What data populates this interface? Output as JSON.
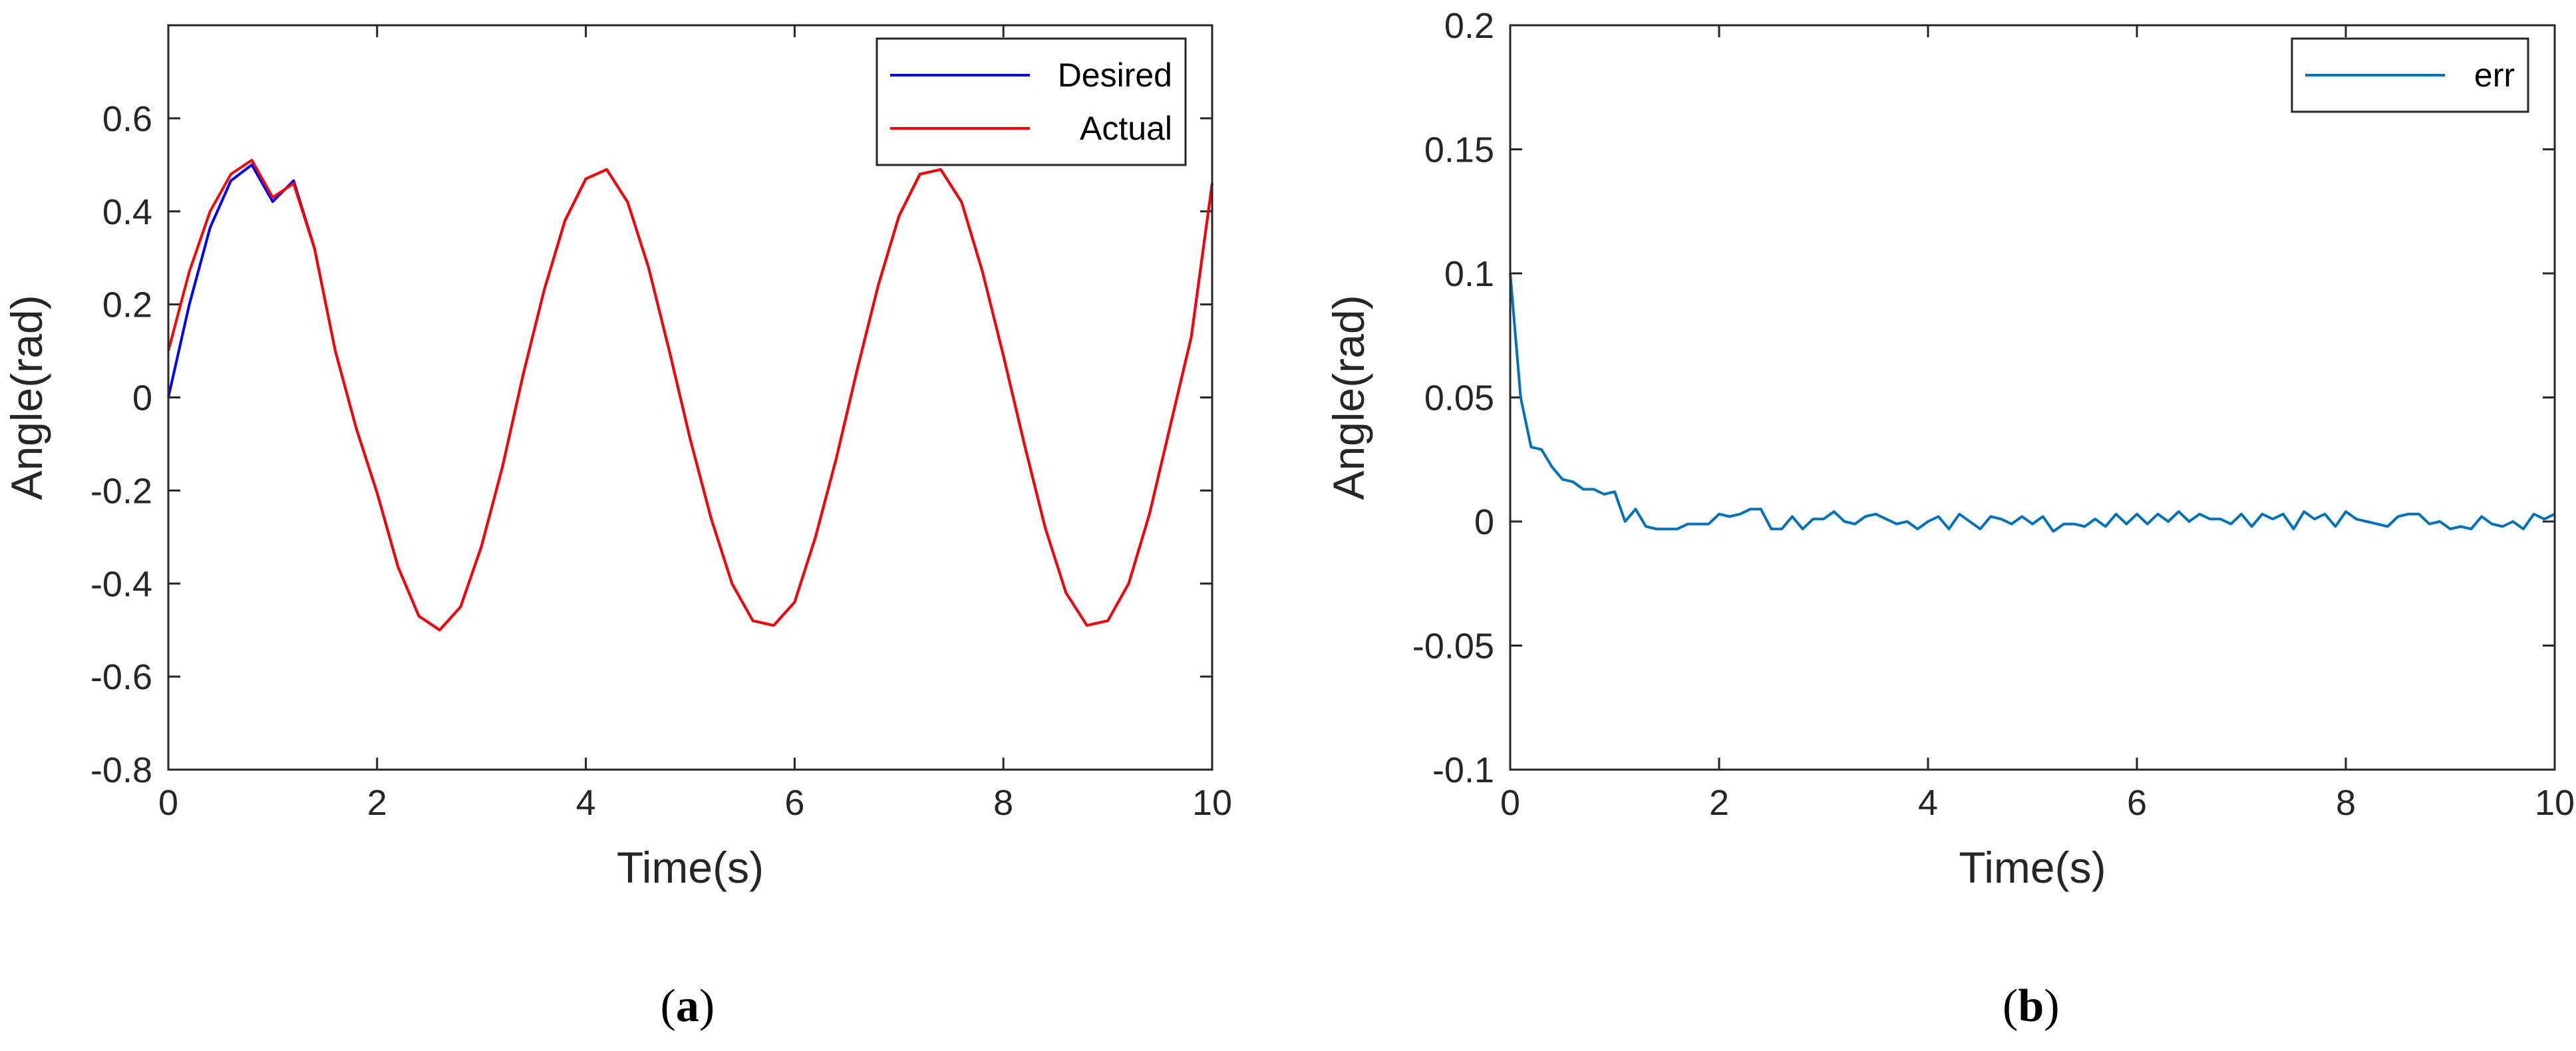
{
  "chart_data": [
    {
      "type": "line",
      "panel_label": "a",
      "xlabel": "Time(s)",
      "ylabel": "Angle(rad)",
      "xlim": [
        0,
        10
      ],
      "ylim": [
        -0.8,
        0.8
      ],
      "xticks": [
        0,
        2,
        4,
        6,
        8,
        10
      ],
      "xtick_labels": [
        "0",
        "2",
        "4",
        "6",
        "8",
        "10"
      ],
      "yticks": [
        -0.8,
        -0.6,
        -0.4,
        -0.2,
        0,
        0.2,
        0.4,
        0.6
      ],
      "ytick_labels": [
        "-0.8",
        "-0.6",
        "-0.4",
        "-0.2",
        "0",
        "0.2",
        "0.4",
        "0.6"
      ],
      "legend_position": "top-right",
      "series": [
        {
          "name": "Desired",
          "color": "#0000ff",
          "x": [
            0,
            0.2,
            0.4,
            0.6,
            0.8,
            1.0,
            1.2,
            1.4,
            1.6,
            1.8,
            2.0,
            2.2,
            2.4,
            2.6,
            2.8,
            3.0,
            3.2,
            3.4,
            3.6,
            3.8,
            4.0,
            4.2,
            4.4,
            4.6,
            4.8,
            5.0,
            5.2,
            5.4,
            5.6,
            5.8,
            6.0,
            6.2,
            6.4,
            6.6,
            6.8,
            7.0,
            7.2,
            7.4,
            7.6,
            7.8,
            8.0,
            8.2,
            8.4,
            8.6,
            8.8,
            9.0,
            9.2,
            9.4,
            9.6,
            9.8,
            10.0
          ],
          "values": [
            0,
            0.199,
            0.365,
            0.466,
            0.5,
            0.421,
            0.466,
            0.321,
            0.1,
            -0.066,
            -0.205,
            -0.364,
            -0.47,
            -0.5,
            -0.45,
            -0.32,
            -0.15,
            0.05,
            0.23,
            0.38,
            0.47,
            0.49,
            0.42,
            0.28,
            0.1,
            -0.09,
            -0.26,
            -0.4,
            -0.48,
            -0.49,
            -0.44,
            -0.3,
            -0.13,
            0.06,
            0.24,
            0.39,
            0.48,
            0.49,
            0.42,
            0.27,
            0.09,
            -0.1,
            -0.28,
            -0.42,
            -0.49,
            -0.48,
            -0.4,
            -0.25,
            -0.06,
            0.13,
            0.46
          ]
        },
        {
          "name": "Actual",
          "color": "#ff0000",
          "x": [
            0,
            0.2,
            0.4,
            0.6,
            0.8,
            1.0,
            1.2,
            1.4,
            1.6,
            1.8,
            2.0,
            2.2,
            2.4,
            2.6,
            2.8,
            3.0,
            3.2,
            3.4,
            3.6,
            3.8,
            4.0,
            4.2,
            4.4,
            4.6,
            4.8,
            5.0,
            5.2,
            5.4,
            5.6,
            5.8,
            6.0,
            6.2,
            6.4,
            6.6,
            6.8,
            7.0,
            7.2,
            7.4,
            7.6,
            7.8,
            8.0,
            8.2,
            8.4,
            8.6,
            8.8,
            9.0,
            9.2,
            9.4,
            9.6,
            9.8,
            10.0
          ],
          "values": [
            0.1,
            0.27,
            0.4,
            0.48,
            0.51,
            0.43,
            0.46,
            0.32,
            0.1,
            -0.066,
            -0.205,
            -0.364,
            -0.47,
            -0.5,
            -0.45,
            -0.32,
            -0.15,
            0.05,
            0.23,
            0.38,
            0.47,
            0.49,
            0.42,
            0.28,
            0.1,
            -0.09,
            -0.26,
            -0.4,
            -0.48,
            -0.49,
            -0.44,
            -0.3,
            -0.13,
            0.06,
            0.24,
            0.39,
            0.48,
            0.49,
            0.42,
            0.27,
            0.09,
            -0.1,
            -0.28,
            -0.42,
            -0.49,
            -0.48,
            -0.4,
            -0.25,
            -0.06,
            0.13,
            0.46
          ]
        }
      ]
    },
    {
      "type": "line",
      "panel_label": "b",
      "xlabel": "Time(s)",
      "ylabel": "Angle(rad)",
      "xlim": [
        0,
        10
      ],
      "ylim": [
        -0.1,
        0.2
      ],
      "xticks": [
        0,
        2,
        4,
        6,
        8,
        10
      ],
      "xtick_labels": [
        "0",
        "2",
        "4",
        "6",
        "8",
        "10"
      ],
      "yticks": [
        -0.1,
        -0.05,
        0,
        0.05,
        0.1,
        0.15,
        0.2
      ],
      "ytick_labels": [
        "-0.1",
        "-0.05",
        "0",
        "0.05",
        "0.1",
        "0.15",
        "0.2"
      ],
      "legend_position": "top-right",
      "series": [
        {
          "name": "err",
          "color": "#0072bd",
          "x": [
            0,
            0.1,
            0.2,
            0.3,
            0.4,
            0.5,
            0.6,
            0.7,
            0.8,
            0.9,
            1.0,
            1.1,
            1.2,
            1.3,
            1.4,
            1.5,
            1.6,
            1.7,
            1.8,
            1.9,
            2.0,
            2.1,
            2.2,
            2.3,
            2.4,
            2.5,
            2.6,
            2.7,
            2.8,
            2.9,
            3.0,
            3.1,
            3.2,
            3.3,
            3.4,
            3.5,
            3.6,
            3.7,
            3.8,
            3.9,
            4.0,
            4.1,
            4.2,
            4.3,
            4.4,
            4.5,
            4.6,
            4.7,
            4.8,
            4.9,
            5.0,
            5.1,
            5.2,
            5.3,
            5.4,
            5.5,
            5.6,
            5.7,
            5.8,
            5.9,
            6.0,
            6.1,
            6.2,
            6.3,
            6.4,
            6.5,
            6.6,
            6.7,
            6.8,
            6.9,
            7.0,
            7.1,
            7.2,
            7.3,
            7.4,
            7.5,
            7.6,
            7.7,
            7.8,
            7.9,
            8.0,
            8.1,
            8.2,
            8.3,
            8.4,
            8.5,
            8.6,
            8.7,
            8.8,
            8.9,
            9.0,
            9.1,
            9.2,
            9.3,
            9.4,
            9.5,
            9.6,
            9.7,
            9.8,
            9.9,
            10.0
          ],
          "values": [
            0.1,
            0.05,
            0.03,
            0.029,
            0.022,
            0.017,
            0.016,
            0.013,
            0.013,
            0.011,
            0.012,
            0,
            0.005,
            -0.002,
            -0.003,
            -0.003,
            -0.003,
            -0.001,
            -0.001,
            -0.001,
            0.003,
            0.002,
            0.003,
            0.005,
            0.005,
            -0.003,
            -0.003,
            0.002,
            -0.003,
            0.001,
            0.001,
            0.004,
            0.0,
            -0.001,
            0.002,
            0.003,
            0.001,
            -0.001,
            0.0,
            -0.003,
            0.0,
            0.002,
            -0.003,
            0.003,
            0.0,
            -0.003,
            0.002,
            0.001,
            -0.001,
            0.002,
            -0.001,
            0.002,
            -0.004,
            -0.001,
            -0.001,
            -0.002,
            0.001,
            -0.002,
            0.003,
            -0.001,
            0.003,
            -0.001,
            0.003,
            0.0,
            0.004,
            0.0,
            0.003,
            0.001,
            0.001,
            -0.001,
            0.003,
            -0.002,
            0.003,
            0.001,
            0.003,
            -0.003,
            0.004,
            0.001,
            0.003,
            -0.002,
            0.004,
            0.001,
            0.0,
            -0.001,
            -0.002,
            0.002,
            0.003,
            0.003,
            -0.001,
            0.0,
            -0.003,
            -0.002,
            -0.003,
            0.002,
            -0.001,
            -0.002,
            0.0,
            -0.003,
            0.003,
            0.001,
            0.003
          ]
        }
      ]
    }
  ]
}
